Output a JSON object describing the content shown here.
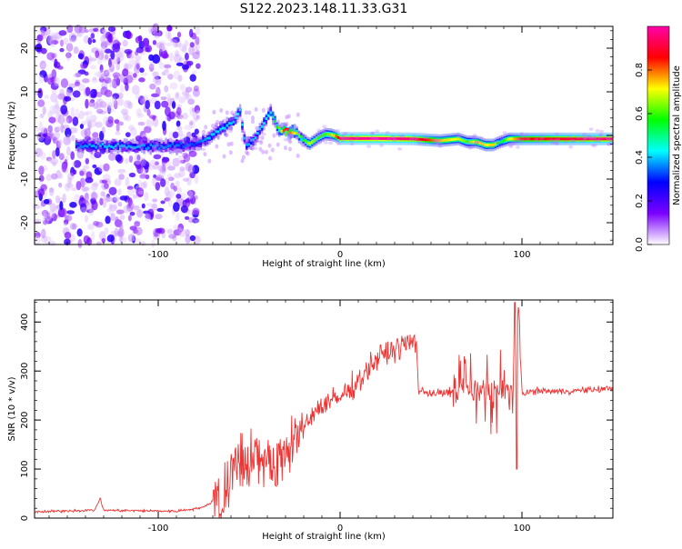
{
  "title": "S122.2023.148.11.33.G31",
  "chart_data": [
    {
      "type": "heatmap",
      "xlabel": "Height of straight line (km)",
      "ylabel": "Frequency (Hz)",
      "xlim": [
        -168,
        150
      ],
      "ylim": [
        -25,
        25
      ],
      "xticks": [
        -100,
        0,
        100
      ],
      "yticks": [
        -20,
        -10,
        0,
        10,
        20
      ],
      "colorbar": {
        "label": "Normalized spectral amplitude",
        "range": [
          0,
          1
        ],
        "ticks": [
          0.0,
          0.2,
          0.4,
          0.6,
          0.8
        ],
        "colors": [
          "#ffffff",
          "#7b00ff",
          "#0000ff",
          "#00ffff",
          "#00ff00",
          "#ffff00",
          "#ff0000",
          "#ff00aa"
        ]
      },
      "trace": {
        "x": [
          -145,
          -130,
          -110,
          -90,
          -80,
          -72,
          -65,
          -58,
          -55,
          -52,
          -47,
          -43,
          -38,
          -34,
          -30,
          -25,
          -20,
          -17,
          -12,
          -8,
          -4,
          0,
          20,
          40,
          55,
          65,
          70,
          75,
          80,
          84,
          88,
          93,
          100,
          120,
          150
        ],
        "y": [
          -2.2,
          -2.4,
          -2.5,
          -2.4,
          -2.2,
          -0.5,
          1.5,
          3.5,
          5.5,
          -2,
          -1,
          2,
          5.5,
          1.5,
          1,
          0.8,
          -1,
          -2,
          -0.5,
          0.3,
          0.1,
          -0.7,
          -0.7,
          -0.8,
          -1.2,
          -0.8,
          -1.5,
          -1.5,
          -2.2,
          -2.2,
          -1.5,
          -0.8,
          -0.8,
          -0.8,
          -0.8
        ],
        "amplitude": [
          0.35,
          0.4,
          0.38,
          0.35,
          0.32,
          0.4,
          0.42,
          0.4,
          0.45,
          0.38,
          0.4,
          0.42,
          0.45,
          0.6,
          0.9,
          0.7,
          0.55,
          0.7,
          0.6,
          0.6,
          0.7,
          0.95,
          1.0,
          0.95,
          0.75,
          0.7,
          0.6,
          0.75,
          0.7,
          0.75,
          0.5,
          0.7,
          0.85,
          0.9,
          0.95
        ]
      }
    },
    {
      "type": "line",
      "xlabel": "Height of straight line (km)",
      "ylabel": "SNR (10 * v/v)",
      "xlim": [
        -168,
        150
      ],
      "ylim": [
        0,
        445
      ],
      "xticks": [
        -100,
        0,
        100
      ],
      "yticks": [
        0,
        100,
        200,
        300,
        400
      ],
      "color": "#ee3333",
      "series": [
        {
          "x": [
            -168,
            -150,
            -135,
            -132,
            -130,
            -110,
            -90,
            -75,
            -68,
            -62,
            -55,
            -48,
            -42,
            -35,
            -28,
            -20,
            -10,
            0,
            10,
            20,
            30,
            40,
            42,
            43,
            50,
            60,
            70,
            75,
            80,
            86,
            90,
            96,
            98,
            100,
            110,
            120,
            130,
            140,
            150
          ],
          "y": [
            12,
            15,
            16,
            40,
            16,
            15,
            14,
            22,
            40,
            100,
            140,
            150,
            130,
            145,
            170,
            195,
            230,
            245,
            280,
            325,
            345,
            360,
            365,
            260,
            255,
            255,
            260,
            255,
            260,
            260,
            255,
            260,
            440,
            255,
            260,
            258,
            260,
            262,
            265
          ]
        }
      ]
    }
  ]
}
